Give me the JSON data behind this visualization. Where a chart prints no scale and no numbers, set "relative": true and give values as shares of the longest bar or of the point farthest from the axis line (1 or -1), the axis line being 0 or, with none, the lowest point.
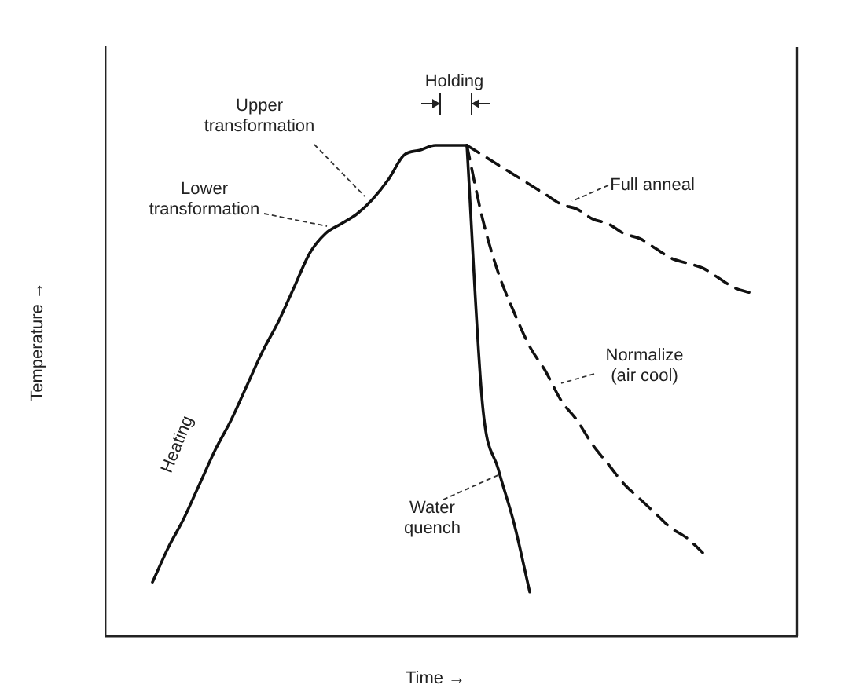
{
  "chart_data": {
    "type": "line",
    "relative": true,
    "xlabel": "Time →",
    "ylabel": "Temperature →",
    "tick_labels": false,
    "legend": false,
    "marker": "none",
    "categories": [
      null,
      null,
      null,
      null,
      null,
      null,
      null,
      null,
      null,
      null,
      null,
      null,
      null,
      null,
      null,
      null,
      null,
      null,
      null,
      null,
      null,
      null,
      null,
      null,
      null,
      null,
      null,
      null,
      null,
      null,
      null,
      null,
      null,
      null,
      null,
      null,
      null,
      null,
      null,
      null,
      null,
      null,
      null,
      null,
      null
    ],
    "series": [
      {
        "name": "Heating",
        "color": "#111111",
        "values": [
          null,
          null,
          null,
          0.11,
          0.18,
          0.24,
          0.31,
          0.38,
          0.44,
          0.51,
          0.58,
          0.64,
          0.71,
          0.78,
          0.82,
          0.84,
          0.86,
          0.89,
          0.93,
          0.98,
          0.99,
          1,
          1,
          1,
          null,
          null,
          null,
          null,
          null,
          null,
          null,
          null,
          null,
          null,
          null,
          null,
          null,
          null,
          null,
          null,
          null,
          null,
          null,
          null,
          null
        ]
      },
      {
        "name": "Water quench",
        "color": "#111111",
        "values": [
          null,
          null,
          null,
          null,
          null,
          null,
          null,
          null,
          null,
          null,
          null,
          null,
          null,
          null,
          null,
          null,
          null,
          null,
          null,
          null,
          null,
          null,
          null,
          1,
          0.47,
          0.34,
          0.23,
          0.09,
          null,
          null,
          null,
          null,
          null,
          null,
          null,
          null,
          null,
          null,
          null,
          null,
          null,
          null,
          null,
          null,
          null
        ]
      },
      {
        "name": "Normalize (air cool)",
        "color": "#111111",
        "line_style": "dashed",
        "values": [
          null,
          null,
          null,
          null,
          null,
          null,
          null,
          null,
          null,
          null,
          null,
          null,
          null,
          null,
          null,
          null,
          null,
          null,
          null,
          null,
          null,
          null,
          null,
          1,
          0.85,
          0.74,
          0.66,
          0.59,
          0.54,
          0.48,
          0.44,
          0.39,
          0.35,
          0.31,
          0.28,
          0.25,
          0.22,
          0.2,
          0.17,
          null,
          null,
          null,
          null,
          null,
          null
        ]
      },
      {
        "name": "Full anneal",
        "color": "#111111",
        "line_style": "dashed",
        "values": [
          null,
          null,
          null,
          null,
          null,
          null,
          null,
          null,
          null,
          null,
          null,
          null,
          null,
          null,
          null,
          null,
          null,
          null,
          null,
          null,
          null,
          null,
          null,
          1,
          0.98,
          0.96,
          0.94,
          0.92,
          0.9,
          0.88,
          0.87,
          0.85,
          0.84,
          0.82,
          0.81,
          0.79,
          0.77,
          0.76,
          0.75,
          0.73,
          0.71,
          0.7,
          null,
          null,
          null
        ]
      }
    ],
    "annotations": [
      "Upper transformation",
      "Lower transformation",
      "Holding"
    ]
  }
}
